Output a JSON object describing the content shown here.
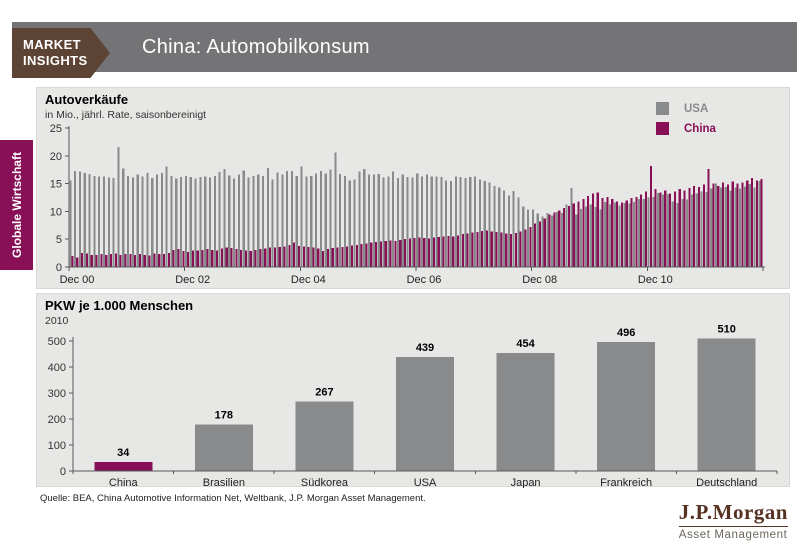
{
  "header": {
    "badge": [
      "MARKET",
      "INSIGHTS"
    ],
    "title": "China: Automobilkonsum"
  },
  "sidebar": {
    "tab": "Globale Wirtschaft"
  },
  "footer": {
    "source": "Quelle: BEA, China Automotive Information Net, Weltbank, J.P. Morgan Asset Management.",
    "logo_top": "J.P.Morgan",
    "logo_bottom": "Asset Management"
  },
  "colors": {
    "maroon": "#871056",
    "gray_bar": "#888a8b",
    "header_gray": "#747477",
    "brown": "#5d4333",
    "panel_bg": "#e7e7e5",
    "axis": "#58595b"
  },
  "chart_data": [
    {
      "type": "bar",
      "title": "Autoverkäufe",
      "subtitle": "in Mio., jährl. Rate, saisonbereinigt",
      "ylim": [
        0,
        25
      ],
      "yticks": [
        0,
        5,
        10,
        15,
        20,
        25
      ],
      "xticks": [
        "Dec 00",
        "Dec 02",
        "Dec 04",
        "Dec 06",
        "Dec 08",
        "Dec 10"
      ],
      "x_start": "Dec 2000",
      "x_end": "Nov 2012",
      "frequency": "monthly",
      "grid": false,
      "legend_position": "top-right",
      "legend": [
        {
          "name": "USA",
          "color": "#888a8b"
        },
        {
          "name": "China",
          "color": "#871056"
        }
      ],
      "series": [
        {
          "name": "USA",
          "values": [
            15.6,
            17.3,
            17.2,
            16.9,
            16.7,
            16.4,
            16.3,
            16.3,
            16.1,
            16.0,
            21.6,
            17.7,
            16.4,
            16.1,
            16.6,
            16.3,
            16.9,
            16.0,
            16.6,
            16.9,
            18.1,
            16.4,
            15.9,
            16.2,
            16.4,
            16.2,
            15.9,
            16.2,
            16.3,
            16.1,
            16.4,
            17.1,
            17.6,
            16.5,
            15.9,
            16.6,
            17.4,
            16.1,
            16.4,
            16.6,
            16.4,
            17.8,
            15.7,
            17.0,
            16.6,
            17.3,
            17.3,
            16.4,
            18.1,
            16.3,
            16.4,
            16.8,
            17.3,
            16.8,
            17.5,
            20.6,
            16.7,
            16.4,
            15.6,
            15.7,
            17.2,
            17.6,
            16.6,
            16.6,
            16.7,
            16.1,
            16.3,
            17.2,
            16.0,
            16.6,
            16.2,
            16.1,
            16.8,
            16.3,
            16.6,
            16.3,
            16.3,
            16.2,
            15.6,
            15.5,
            16.3,
            16.2,
            16.0,
            16.2,
            16.3,
            15.7,
            15.5,
            15.2,
            14.6,
            14.3,
            13.8,
            12.9,
            13.7,
            12.5,
            10.9,
            10.3,
            10.3,
            9.6,
            9.1,
            9.7,
            9.3,
            9.9,
            9.7,
            11.2,
            14.2,
            9.4,
            10.4,
            10.9,
            11.2,
            10.8,
            10.3,
            11.7,
            11.2,
            11.6,
            11.1,
            11.5,
            11.4,
            11.7,
            12.2,
            12.2,
            12.5,
            12.6,
            13.3,
            13.0,
            13.1,
            11.8,
            11.5,
            12.2,
            12.1,
            13.0,
            13.2,
            13.6,
            13.5,
            14.1,
            15.0,
            14.3,
            14.4,
            13.8,
            14.3,
            14.1,
            14.5,
            14.9,
            14.3,
            15.5
          ]
        },
        {
          "name": "China",
          "values": [
            2.0,
            1.7,
            2.5,
            2.4,
            2.2,
            2.2,
            2.3,
            2.2,
            2.3,
            2.4,
            2.2,
            2.3,
            2.3,
            2.2,
            2.3,
            2.2,
            2.1,
            2.4,
            2.3,
            2.3,
            2.5,
            3.1,
            3.2,
            2.9,
            2.7,
            3.0,
            3.0,
            3.1,
            3.2,
            3.1,
            3.0,
            3.3,
            3.5,
            3.4,
            3.2,
            3.1,
            3.0,
            2.9,
            3.1,
            3.2,
            3.3,
            3.5,
            3.5,
            3.6,
            3.7,
            4.0,
            4.4,
            3.8,
            3.7,
            3.6,
            3.5,
            3.3,
            2.9,
            3.2,
            3.4,
            3.5,
            3.6,
            3.7,
            3.9,
            4.0,
            4.1,
            4.2,
            4.4,
            4.5,
            4.6,
            4.7,
            4.8,
            4.7,
            4.9,
            5.0,
            5.1,
            5.2,
            5.3,
            5.2,
            5.1,
            5.3,
            5.4,
            5.5,
            5.6,
            5.5,
            5.7,
            5.9,
            6.0,
            6.2,
            6.3,
            6.5,
            6.6,
            6.4,
            6.3,
            6.2,
            6.0,
            5.9,
            6.1,
            6.4,
            6.7,
            7.2,
            7.8,
            8.2,
            8.7,
            9.4,
            9.8,
            10.2,
            10.6,
            11.0,
            11.4,
            11.8,
            12.2,
            12.8,
            13.2,
            13.4,
            12.4,
            12.6,
            12.2,
            11.8,
            11.6,
            12.0,
            12.4,
            12.6,
            13.0,
            13.6,
            18.2,
            14.0,
            13.4,
            13.8,
            13.2,
            13.6,
            14.0,
            13.8,
            14.2,
            14.6,
            14.4,
            14.8,
            17.6,
            15.0,
            14.6,
            15.2,
            14.8,
            15.4,
            15.0,
            15.2,
            15.6,
            16.0,
            15.6,
            15.8
          ]
        }
      ]
    },
    {
      "type": "bar",
      "title": "PKW je 1.000 Menschen",
      "subtitle": "2010",
      "categories": [
        "China",
        "Brasilien",
        "Südkorea",
        "USA",
        "Japan",
        "Frankreich",
        "Deutschland"
      ],
      "values": [
        34,
        178,
        267,
        439,
        454,
        496,
        510
      ],
      "bar_colors": [
        "#871056",
        "#888a8b",
        "#888a8b",
        "#888a8b",
        "#888a8b",
        "#888a8b",
        "#888a8b"
      ],
      "ylim": [
        0,
        500
      ],
      "yticks": [
        0,
        100,
        200,
        300,
        400,
        500
      ],
      "grid": false,
      "data_labels": true
    }
  ]
}
